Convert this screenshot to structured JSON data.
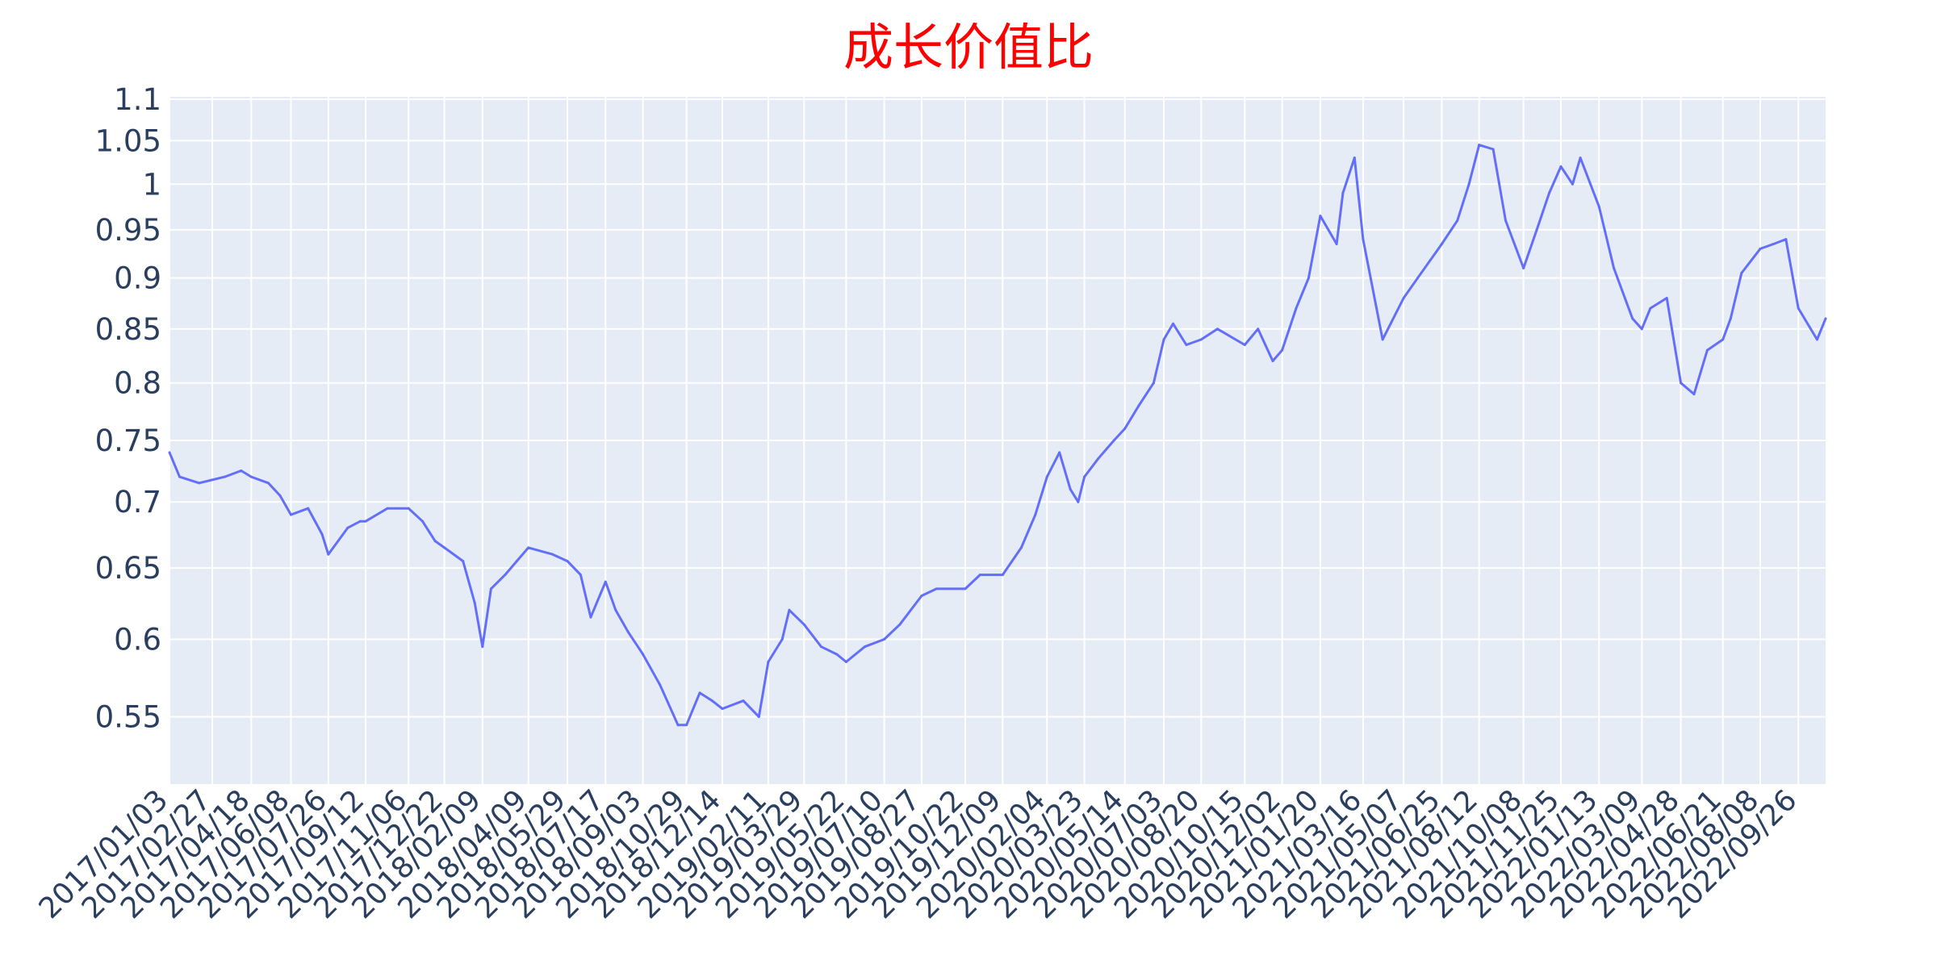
{
  "chart_data": {
    "type": "line",
    "title": "成长价值比",
    "xlabel": "",
    "ylabel": "",
    "y_scale": "log",
    "ylim": [
      0.51,
      1.103
    ],
    "grid": true,
    "legend": "none",
    "colors": {
      "line": "#636efa",
      "plot_bg": "#e5ecf6",
      "grid": "#ffffff",
      "title": "#ff0000",
      "text": "#2a3f5f"
    },
    "y_ticks": [
      "0.55",
      "0.6",
      "0.65",
      "0.7",
      "0.75",
      "0.8",
      "0.85",
      "0.9",
      "0.95",
      "1",
      "1.05",
      "1.1"
    ],
    "x_ticks": [
      "2017/01/03",
      "2017/02/27",
      "2017/04/18",
      "2017/06/08",
      "2017/07/26",
      "2017/09/12",
      "2017/11/06",
      "2017/12/22",
      "2018/02/09",
      "2018/04/09",
      "2018/05/29",
      "2018/07/17",
      "2018/09/03",
      "2018/10/29",
      "2018/12/14",
      "2019/02/11",
      "2019/03/29",
      "2019/05/22",
      "2019/07/10",
      "2019/08/27",
      "2019/10/22",
      "2019/12/09",
      "2020/02/04",
      "2020/03/23",
      "2020/05/14",
      "2020/07/03",
      "2020/08/20",
      "2020/10/15",
      "2020/12/02",
      "2021/01/20",
      "2021/03/16",
      "2021/05/07",
      "2021/06/25",
      "2021/08/12",
      "2021/10/08",
      "2021/11/25",
      "2022/01/13",
      "2022/03/09",
      "2022/04/28",
      "2022/06/21",
      "2022/08/08",
      "2022/09/26"
    ],
    "series": [
      {
        "name": "",
        "x": [
          "2017/01/03",
          "2017/01/16",
          "2017/02/10",
          "2017/03/15",
          "2017/04/05",
          "2017/04/18",
          "2017/05/10",
          "2017/05/25",
          "2017/06/08",
          "2017/06/30",
          "2017/07/18",
          "2017/07/26",
          "2017/08/20",
          "2017/09/05",
          "2017/09/12",
          "2017/10/10",
          "2017/11/06",
          "2017/11/24",
          "2017/12/10",
          "2017/12/22",
          "2018/01/15",
          "2018/01/30",
          "2018/02/09",
          "2018/02/20",
          "2018/03/10",
          "2018/03/25",
          "2018/04/09",
          "2018/05/10",
          "2018/05/29",
          "2018/06/15",
          "2018/06/28",
          "2018/07/17",
          "2018/07/30",
          "2018/08/15",
          "2018/09/03",
          "2018/09/25",
          "2018/10/18",
          "2018/10/29",
          "2018/11/15",
          "2018/12/01",
          "2018/12/14",
          "2019/01/10",
          "2019/01/30",
          "2019/02/11",
          "2019/03/01",
          "2019/03/10",
          "2019/03/29",
          "2019/04/20",
          "2019/05/10",
          "2019/05/22",
          "2019/06/15",
          "2019/07/10",
          "2019/07/30",
          "2019/08/27",
          "2019/09/15",
          "2019/10/22",
          "2019/11/10",
          "2019/12/09",
          "2020/01/02",
          "2020/01/20",
          "2020/02/04",
          "2020/02/20",
          "2020/03/05",
          "2020/03/15",
          "2020/03/23",
          "2020/04/10",
          "2020/04/30",
          "2020/05/14",
          "2020/06/01",
          "2020/06/20",
          "2020/07/03",
          "2020/07/15",
          "2020/08/01",
          "2020/08/20",
          "2020/09/10",
          "2020/10/15",
          "2020/11/01",
          "2020/11/20",
          "2020/12/02",
          "2020/12/20",
          "2021/01/05",
          "2021/01/20",
          "2021/02/10",
          "2021/02/18",
          "2021/03/05",
          "2021/03/16",
          "2021/04/10",
          "2021/05/07",
          "2021/05/25",
          "2021/06/25",
          "2021/07/15",
          "2021/07/30",
          "2021/08/12",
          "2021/08/30",
          "2021/09/15",
          "2021/10/08",
          "2021/10/25",
          "2021/11/10",
          "2021/11/25",
          "2021/12/10",
          "2021/12/20",
          "2022/01/13",
          "2022/02/01",
          "2022/02/25",
          "2022/03/09",
          "2022/03/20",
          "2022/04/10",
          "2022/04/28",
          "2022/05/15",
          "2022/06/01",
          "2022/06/21",
          "2022/07/01",
          "2022/07/15",
          "2022/08/08",
          "2022/08/25",
          "2022/09/10",
          "2022/09/26",
          "2022/10/20",
          "2022/10/31"
        ],
        "y": [
          0.74,
          0.72,
          0.715,
          0.72,
          0.725,
          0.72,
          0.715,
          0.705,
          0.69,
          0.695,
          0.675,
          0.66,
          0.68,
          0.685,
          0.685,
          0.695,
          0.695,
          0.685,
          0.67,
          0.665,
          0.655,
          0.625,
          0.595,
          0.635,
          0.645,
          0.655,
          0.665,
          0.66,
          0.655,
          0.645,
          0.615,
          0.64,
          0.62,
          0.605,
          0.59,
          0.57,
          0.545,
          0.545,
          0.565,
          0.56,
          0.555,
          0.56,
          0.55,
          0.585,
          0.6,
          0.62,
          0.61,
          0.595,
          0.59,
          0.585,
          0.595,
          0.6,
          0.61,
          0.63,
          0.635,
          0.635,
          0.645,
          0.645,
          0.665,
          0.69,
          0.72,
          0.74,
          0.71,
          0.7,
          0.72,
          0.735,
          0.75,
          0.76,
          0.78,
          0.8,
          0.84,
          0.855,
          0.835,
          0.84,
          0.85,
          0.835,
          0.85,
          0.82,
          0.83,
          0.87,
          0.9,
          0.965,
          0.935,
          0.99,
          1.03,
          0.94,
          0.84,
          0.88,
          0.9,
          0.935,
          0.96,
          1.0,
          1.045,
          1.04,
          0.96,
          0.91,
          0.95,
          0.99,
          1.02,
          1.0,
          1.03,
          0.975,
          0.91,
          0.86,
          0.85,
          0.87,
          0.88,
          0.8,
          0.79,
          0.83,
          0.84,
          0.86,
          0.905,
          0.93,
          0.935,
          0.94,
          0.87,
          0.84,
          0.86
        ]
      }
    ]
  }
}
